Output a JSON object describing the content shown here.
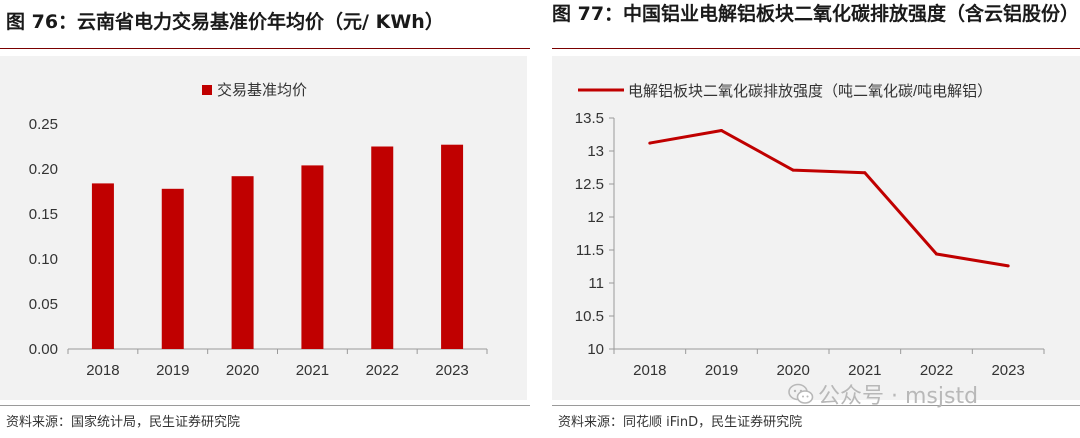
{
  "left": {
    "title": "图 76：云南省电力交易基准价年均价（元/ KWh）",
    "source": "资料来源：国家统计局，民生证券研究院"
  },
  "right": {
    "title": "图 77：中国铝业电解铝板块二氧化碳排放强度（含云铝股份）",
    "source": "资料来源：同花顺 iFinD，民生证券研究院"
  },
  "watermark": {
    "text": "公众号 · msjstd",
    "icon": "wechat-icon"
  },
  "colors": {
    "accent": "#c00000",
    "panel": "#f2f2f2",
    "rule": "#7a0000"
  },
  "chart_data": [
    {
      "type": "bar",
      "title": "图 76：云南省电力交易基准价年均价（元/ KWh）",
      "legend": "交易基准均价",
      "legend_position": "top",
      "categories": [
        "2018",
        "2019",
        "2020",
        "2021",
        "2022",
        "2023"
      ],
      "values": [
        0.184,
        0.178,
        0.192,
        0.204,
        0.225,
        0.227
      ],
      "ylim": [
        0,
        0.25
      ],
      "yticks": [
        "0.00",
        "0.05",
        "0.10",
        "0.15",
        "0.20",
        "0.25"
      ],
      "color": "#c00000",
      "xlabel": "",
      "ylabel": ""
    },
    {
      "type": "line",
      "title": "图 77：中国铝业电解铝板块二氧化碳排放强度（含云铝股份）",
      "legend": "电解铝板块二氧化碳排放强度（吨二氧化碳/吨电解铝）",
      "legend_position": "top",
      "categories": [
        "2018",
        "2019",
        "2020",
        "2021",
        "2022",
        "2023"
      ],
      "values": [
        13.12,
        13.31,
        12.71,
        12.67,
        11.44,
        11.26
      ],
      "ylim": [
        10,
        13.5
      ],
      "yticks": [
        "10",
        "10.5",
        "11",
        "11.5",
        "12",
        "12.5",
        "13",
        "13.5"
      ],
      "color": "#c00000",
      "xlabel": "",
      "ylabel": ""
    }
  ]
}
